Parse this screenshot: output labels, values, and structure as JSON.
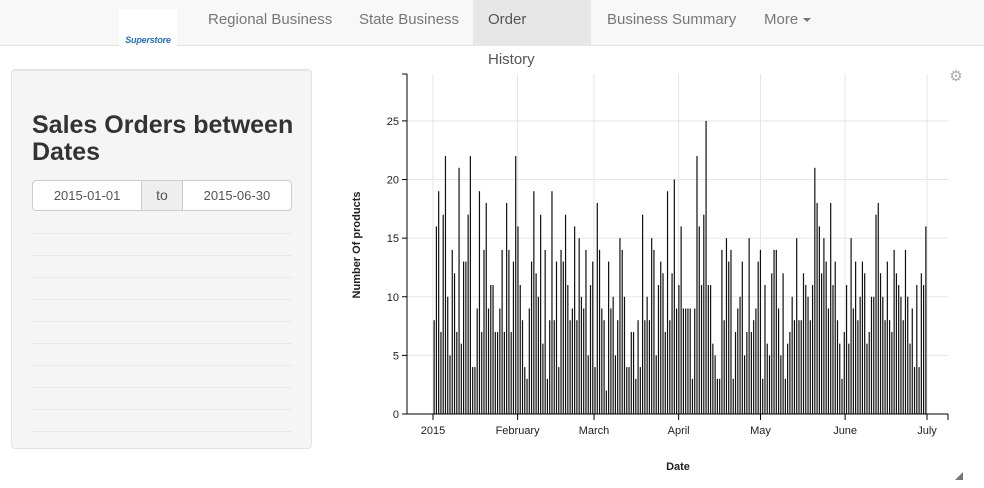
{
  "navbar": {
    "logo_text": "Superstore",
    "items": [
      {
        "label": "Regional Business"
      },
      {
        "label": "State Business"
      },
      {
        "label": "Order History"
      },
      {
        "label": "Business Summary"
      },
      {
        "label": "More"
      }
    ]
  },
  "sidebar": {
    "title": "Sales Orders between Dates",
    "start_date": "2015-01-01",
    "separator": "to",
    "end_date": "2015-06-30"
  },
  "chart_data": {
    "type": "bar",
    "xlabel": "Date",
    "ylabel": "Number Of products",
    "ylim": [
      0,
      29
    ],
    "y_ticks": [
      0,
      5,
      10,
      15,
      20,
      25
    ],
    "x_ticks": [
      "2015",
      "February",
      "March",
      "April",
      "May",
      "June",
      "July"
    ],
    "x_range": [
      "2015-01-01",
      "2015-07-01"
    ],
    "bar_color": "#111111",
    "grid": true,
    "values": [
      8,
      16,
      19,
      7,
      17,
      22,
      10,
      5,
      14,
      12,
      7,
      21,
      6,
      13,
      13,
      17,
      22,
      4,
      4,
      9,
      19,
      7,
      14,
      18,
      9,
      11,
      11,
      7,
      7,
      9,
      14,
      7,
      18,
      14,
      7,
      13,
      22,
      16,
      11,
      8,
      4,
      3,
      9,
      13,
      19,
      12,
      10,
      17,
      6,
      14,
      3,
      8,
      19,
      8,
      13,
      4,
      14,
      13,
      17,
      11,
      8,
      9,
      16,
      8,
      15,
      10,
      9,
      14,
      5,
      11,
      13,
      4,
      18,
      14,
      9,
      8,
      2,
      13,
      9,
      10,
      5,
      8,
      15,
      14,
      10,
      4,
      4,
      7,
      7,
      3,
      8,
      4,
      17,
      8,
      10,
      8,
      15,
      14,
      5,
      11,
      13,
      12,
      7,
      19,
      8,
      12,
      20,
      9,
      11,
      16,
      9,
      9,
      9,
      9,
      3,
      9,
      22,
      16,
      11,
      17,
      25,
      11,
      11,
      6,
      5,
      3,
      3,
      14,
      8,
      15,
      13,
      14,
      3,
      7,
      9,
      10,
      13,
      5,
      7,
      15,
      7,
      8,
      9,
      13,
      14,
      3,
      11,
      6,
      5,
      12,
      14,
      14,
      9,
      5,
      12,
      3,
      6,
      7,
      10,
      8,
      15,
      8,
      8,
      12,
      11,
      10,
      8,
      11,
      21,
      18,
      16,
      12,
      15,
      13,
      9,
      18,
      11,
      13,
      8,
      6,
      3,
      7,
      11,
      6,
      15,
      9,
      13,
      8,
      10,
      13,
      12,
      6,
      7,
      10,
      10,
      17,
      18,
      12,
      10,
      8,
      13,
      8,
      7,
      14,
      12,
      11,
      10,
      8,
      14,
      10,
      6,
      9,
      4,
      11,
      4,
      12,
      11,
      16
    ]
  }
}
